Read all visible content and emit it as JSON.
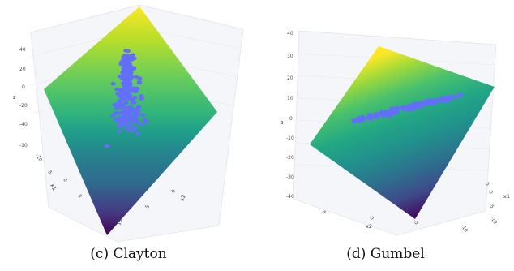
{
  "chart_data": [
    {
      "type": "scatter",
      "subtype": "3d-scatter-over-surface",
      "caption": "(c) Clayton",
      "surface_colorscale": "viridis",
      "point_color": "#636efa",
      "axes": {
        "x1": {
          "title": "x1",
          "ticks": [
            "-10",
            "-5",
            "0",
            "5"
          ]
        },
        "x2": {
          "title": "x2",
          "ticks": [
            "-5",
            "0",
            "5",
            "10"
          ]
        },
        "z": {
          "title": "z",
          "ticks": [
            "40",
            "20",
            "0",
            "-20",
            "-40",
            "-10"
          ]
        }
      },
      "grid": true
    },
    {
      "type": "scatter",
      "subtype": "3d-scatter-over-surface",
      "caption": "(d) Gumbel",
      "surface_colorscale": "viridis",
      "point_color": "#636efa",
      "axes": {
        "x1": {
          "title": "x1",
          "ticks": [
            "5",
            "0",
            "-5",
            "-10"
          ]
        },
        "x2": {
          "title": "x2",
          "ticks": [
            "5",
            "0",
            "-5",
            "-10"
          ]
        },
        "z": {
          "title": "z",
          "ticks": [
            "40",
            "30",
            "20",
            "10",
            "0",
            "-10",
            "-20",
            "-30",
            "-40"
          ]
        }
      },
      "grid": true
    }
  ]
}
